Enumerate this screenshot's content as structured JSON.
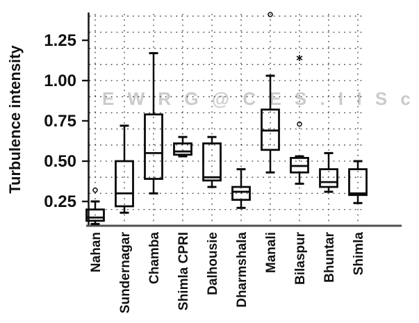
{
  "watermark": {
    "text": "E W R G @ C E S . I I S c",
    "color": "#cbcbcb"
  },
  "chart_data": {
    "type": "box",
    "title": "",
    "xlabel": "",
    "ylabel": "Turbulence intensity",
    "ylim": [
      0.1,
      1.45
    ],
    "y_ticks": [
      {
        "value": 0.25,
        "label": "0.25"
      },
      {
        "value": 0.5,
        "label": "0.50"
      },
      {
        "value": 0.75,
        "label": "0.75"
      },
      {
        "value": 1.0,
        "label": "1.00"
      },
      {
        "value": 1.25,
        "label": "1.25"
      }
    ],
    "grid": {
      "style": "dotted",
      "horizontal_step": 0.1,
      "horizontal_range": [
        0.2,
        1.4
      ],
      "vertical": "one dotted line per category center"
    },
    "legend": "none",
    "categories": [
      "Nahan",
      "Sundernagar",
      "Chamba",
      "Shimla CPRI",
      "Dalhousie",
      "Dharmshala",
      "Manali",
      "Bilaspur",
      "Bhuntar",
      "Shimla"
    ],
    "series": [
      {
        "name": "Nahan",
        "whisker_low": 0.11,
        "q1": 0.13,
        "median": 0.15,
        "q3": 0.2,
        "whisker_high": 0.25,
        "outliers": [
          {
            "value": 0.32,
            "marker": "circle"
          }
        ]
      },
      {
        "name": "Sundernagar",
        "whisker_low": 0.18,
        "q1": 0.22,
        "median": 0.3,
        "q3": 0.5,
        "whisker_high": 0.72,
        "outliers": []
      },
      {
        "name": "Chamba",
        "whisker_low": 0.3,
        "q1": 0.39,
        "median": 0.55,
        "q3": 0.79,
        "whisker_high": 1.17,
        "outliers": []
      },
      {
        "name": "Shimla CPRI",
        "whisker_low": 0.53,
        "q1": 0.54,
        "median": 0.56,
        "q3": 0.61,
        "whisker_high": 0.65,
        "outliers": []
      },
      {
        "name": "Dalhousie",
        "whisker_low": 0.34,
        "q1": 0.38,
        "median": 0.4,
        "q3": 0.61,
        "whisker_high": 0.65,
        "outliers": []
      },
      {
        "name": "Dharmshala",
        "whisker_low": 0.21,
        "q1": 0.26,
        "median": 0.31,
        "q3": 0.34,
        "whisker_high": 0.45,
        "outliers": []
      },
      {
        "name": "Manali",
        "whisker_low": 0.43,
        "q1": 0.57,
        "median": 0.69,
        "q3": 0.82,
        "whisker_high": 1.03,
        "outliers": [
          {
            "value": 1.41,
            "marker": "circle"
          }
        ]
      },
      {
        "name": "Bilaspur",
        "whisker_low": 0.36,
        "q1": 0.43,
        "median": 0.47,
        "q3": 0.52,
        "whisker_high": 0.53,
        "outliers": [
          {
            "value": 1.14,
            "marker": "asterisk"
          },
          {
            "value": 0.73,
            "marker": "circle"
          }
        ]
      },
      {
        "name": "Bhuntar",
        "whisker_low": 0.31,
        "q1": 0.34,
        "median": 0.37,
        "q3": 0.45,
        "whisker_high": 0.55,
        "outliers": []
      },
      {
        "name": "Shimla",
        "whisker_low": 0.24,
        "q1": 0.29,
        "median": 0.3,
        "q3": 0.45,
        "whisker_high": 0.5,
        "outliers": []
      }
    ]
  }
}
